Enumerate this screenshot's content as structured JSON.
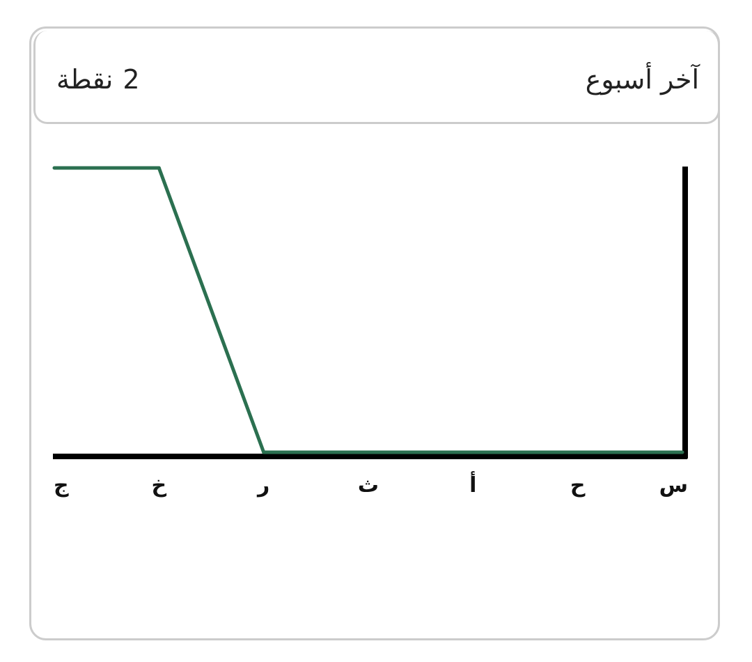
{
  "header": {
    "title": "آخر أسبوع",
    "points_value": "2",
    "points_label": "نقطة"
  },
  "colors": {
    "line": "#2b7050",
    "axis": "#000000",
    "border": "#cccccc"
  },
  "chart_data": {
    "type": "line",
    "categories": [
      "س",
      "ح",
      "أ",
      "ث",
      "ر",
      "خ",
      "ج"
    ],
    "series": [
      {
        "values": [
          0,
          0,
          0,
          0,
          0,
          2,
          2
        ]
      }
    ],
    "ylim": [
      0,
      2
    ],
    "grid": false,
    "axis_direction": "rtl"
  }
}
